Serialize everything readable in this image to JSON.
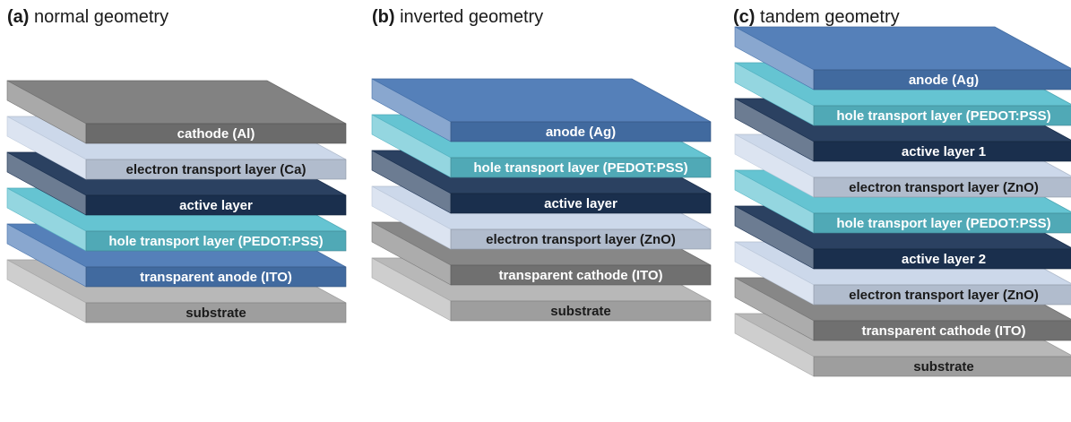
{
  "colors": {
    "gray_dark": "#7a7a7a",
    "white": "#ffffff",
    "light_blue_gray": "#c9d6e9",
    "navy": "#1d3557",
    "teal": "#5bc0cf",
    "blue": "#4a78b5",
    "light_gray": "#b3b3b3",
    "gray_mid": "#7f7f7f"
  },
  "panels": [
    {
      "letter": "(a)",
      "title": "normal geometry",
      "layers_top_to_bottom": [
        {
          "label": "cathode (Al)",
          "color": "gray_dark"
        },
        {
          "label": "electron transport layer (Ca)",
          "color": "light_blue_gray"
        },
        {
          "label": "active layer",
          "color": "navy"
        },
        {
          "label": "hole transport layer (PEDOT:PSS)",
          "color": "teal"
        },
        {
          "label": "transparent anode (ITO)",
          "color": "blue"
        },
        {
          "label": "substrate",
          "color": "light_gray"
        }
      ]
    },
    {
      "letter": "(b)",
      "title": "inverted geometry",
      "layers_top_to_bottom": [
        {
          "label": "anode (Ag)",
          "color": "blue"
        },
        {
          "label": "hole transport layer (PEDOT:PSS)",
          "color": "teal"
        },
        {
          "label": "active layer",
          "color": "navy"
        },
        {
          "label": "electron transport layer (ZnO)",
          "color": "light_blue_gray"
        },
        {
          "label": "transparent cathode (ITO)",
          "color": "gray_mid"
        },
        {
          "label": "substrate",
          "color": "light_gray"
        }
      ]
    },
    {
      "letter": "(c)",
      "title": "tandem geometry",
      "layers_top_to_bottom": [
        {
          "label": "anode (Ag)",
          "color": "blue"
        },
        {
          "label": "hole transport layer (PEDOT:PSS)",
          "color": "teal"
        },
        {
          "label": "active layer 1",
          "color": "navy"
        },
        {
          "label": "electron transport layer (ZnO)",
          "color": "light_blue_gray"
        },
        {
          "label": "hole transport layer (PEDOT:PSS)",
          "color": "teal"
        },
        {
          "label": "active layer 2",
          "color": "navy"
        },
        {
          "label": "electron transport layer (ZnO)",
          "color": "light_blue_gray"
        },
        {
          "label": "transparent cathode (ITO)",
          "color": "gray_mid"
        },
        {
          "label": "substrate",
          "color": "light_gray"
        }
      ]
    }
  ]
}
